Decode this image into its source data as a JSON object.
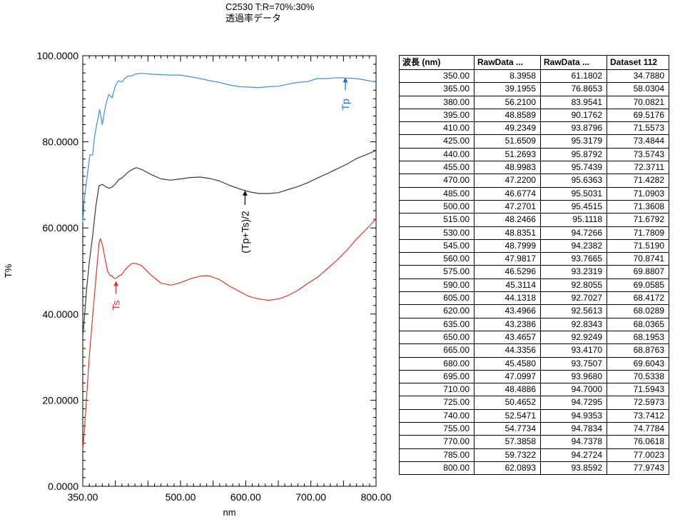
{
  "header": {
    "line1": "C2530 T:R=70%:30%",
    "line2": "透過率データ"
  },
  "chart_data": {
    "type": "line",
    "title": "C2530 T:R=70%:30%",
    "subtitle": "透過率データ",
    "xlabel": "nm",
    "ylabel": "T%",
    "xlim": [
      350,
      800
    ],
    "ylim": [
      0,
      100
    ],
    "xticks": [
      "350.00",
      "500.00",
      "600.00",
      "700.00",
      "800.00"
    ],
    "xtick_values": [
      350,
      500,
      600,
      700,
      800
    ],
    "yticks": [
      "0.0000",
      "20.0000",
      "40.0000",
      "60.0000",
      "80.0000",
      "100.0000"
    ],
    "ytick_values": [
      0,
      20,
      40,
      60,
      80,
      100
    ],
    "grid": false,
    "series": [
      {
        "name": "Tp",
        "color": "#3d8fe0",
        "points": [
          [
            350,
            61.2
          ],
          [
            352,
            66
          ],
          [
            355,
            70
          ],
          [
            358,
            73.5
          ],
          [
            361,
            77
          ],
          [
            365,
            76.9
          ],
          [
            368,
            81
          ],
          [
            372,
            84.5
          ],
          [
            376,
            87.5
          ],
          [
            380,
            84
          ],
          [
            383,
            86.8
          ],
          [
            386,
            89
          ],
          [
            390,
            91
          ],
          [
            395,
            90.2
          ],
          [
            400,
            93
          ],
          [
            405,
            94.2
          ],
          [
            410,
            93.9
          ],
          [
            415,
            94.8
          ],
          [
            420,
            95.3
          ],
          [
            425,
            95.3
          ],
          [
            430,
            95.7
          ],
          [
            440,
            95.9
          ],
          [
            455,
            95.7
          ],
          [
            470,
            95.6
          ],
          [
            485,
            95.5
          ],
          [
            500,
            95.5
          ],
          [
            515,
            95.1
          ],
          [
            530,
            94.7
          ],
          [
            545,
            94.2
          ],
          [
            560,
            93.8
          ],
          [
            575,
            93.2
          ],
          [
            590,
            92.8
          ],
          [
            605,
            92.7
          ],
          [
            620,
            92.6
          ],
          [
            635,
            92.8
          ],
          [
            650,
            92.9
          ],
          [
            665,
            93.4
          ],
          [
            680,
            93.8
          ],
          [
            695,
            94.0
          ],
          [
            710,
            94.7
          ],
          [
            725,
            94.7
          ],
          [
            740,
            94.9
          ],
          [
            755,
            94.8
          ],
          [
            770,
            94.7
          ],
          [
            785,
            94.3
          ],
          [
            800,
            93.9
          ]
        ]
      },
      {
        "name": "(Tp+Ts)/2",
        "color": "#3a3a3a",
        "points": [
          [
            350,
            34.8
          ],
          [
            353,
            40
          ],
          [
            356,
            46
          ],
          [
            360,
            52
          ],
          [
            365,
            58
          ],
          [
            370,
            65
          ],
          [
            375,
            69.8
          ],
          [
            380,
            70.1
          ],
          [
            385,
            69.6
          ],
          [
            390,
            69.2
          ],
          [
            395,
            69.5
          ],
          [
            400,
            70.2
          ],
          [
            405,
            71.2
          ],
          [
            410,
            71.6
          ],
          [
            420,
            73
          ],
          [
            425,
            73.5
          ],
          [
            432,
            74.0
          ],
          [
            440,
            73.6
          ],
          [
            455,
            72.4
          ],
          [
            470,
            71.4
          ],
          [
            485,
            71.1
          ],
          [
            500,
            71.4
          ],
          [
            515,
            71.7
          ],
          [
            530,
            71.8
          ],
          [
            545,
            71.5
          ],
          [
            560,
            70.9
          ],
          [
            575,
            69.9
          ],
          [
            590,
            69.1
          ],
          [
            605,
            68.4
          ],
          [
            620,
            68.0
          ],
          [
            635,
            68.0
          ],
          [
            650,
            68.2
          ],
          [
            665,
            68.9
          ],
          [
            680,
            69.6
          ],
          [
            695,
            70.5
          ],
          [
            710,
            71.6
          ],
          [
            725,
            72.6
          ],
          [
            740,
            73.7
          ],
          [
            755,
            74.8
          ],
          [
            770,
            76.1
          ],
          [
            785,
            77.0
          ],
          [
            800,
            78.0
          ]
        ]
      },
      {
        "name": "Ts",
        "color": "#e8312b",
        "points": [
          [
            350,
            8.4
          ],
          [
            353,
            14
          ],
          [
            356,
            21
          ],
          [
            360,
            30
          ],
          [
            365,
            39.2
          ],
          [
            370,
            48
          ],
          [
            375,
            56.5
          ],
          [
            377,
            57.5
          ],
          [
            380,
            56.2
          ],
          [
            384,
            53
          ],
          [
            388,
            50
          ],
          [
            392,
            48.9
          ],
          [
            395,
            48.9
          ],
          [
            398,
            48.3
          ],
          [
            401,
            48.3
          ],
          [
            405,
            48.8
          ],
          [
            410,
            49.2
          ],
          [
            415,
            50.3
          ],
          [
            418,
            50.8
          ],
          [
            425,
            51.7
          ],
          [
            430,
            51.8
          ],
          [
            440,
            51.3
          ],
          [
            455,
            49.0
          ],
          [
            470,
            47.2
          ],
          [
            485,
            46.7
          ],
          [
            500,
            47.3
          ],
          [
            515,
            48.2
          ],
          [
            530,
            48.8
          ],
          [
            540,
            48.9
          ],
          [
            545,
            48.8
          ],
          [
            560,
            48.0
          ],
          [
            575,
            46.5
          ],
          [
            590,
            45.3
          ],
          [
            605,
            44.1
          ],
          [
            620,
            43.5
          ],
          [
            635,
            43.2
          ],
          [
            650,
            43.5
          ],
          [
            665,
            44.3
          ],
          [
            680,
            45.5
          ],
          [
            695,
            47.1
          ],
          [
            710,
            48.5
          ],
          [
            725,
            50.5
          ],
          [
            740,
            52.5
          ],
          [
            755,
            54.8
          ],
          [
            770,
            57.4
          ],
          [
            785,
            59.7
          ],
          [
            800,
            62.1
          ]
        ]
      }
    ],
    "annotations": [
      {
        "text": "Tp",
        "color": "#1a6fd6",
        "x": 753,
        "y": 95.3
      },
      {
        "text": "(Tp+Ts)/2",
        "color": "#000000",
        "x": 599,
        "y": 69
      },
      {
        "text": "Ts",
        "color": "#e8312b",
        "x": 401,
        "y": 48
      }
    ]
  },
  "table": {
    "headers": [
      "波長 (nm)",
      "RawData ...",
      "RawData ...",
      "Dataset 112"
    ],
    "rows": [
      [
        "350.00",
        "8.3958",
        "61.1802",
        "34.7880"
      ],
      [
        "365.00",
        "39.1955",
        "76.8653",
        "58.0304"
      ],
      [
        "380.00",
        "56.2100",
        "83.9541",
        "70.0821"
      ],
      [
        "395.00",
        "48.8589",
        "90.1762",
        "69.5176"
      ],
      [
        "410.00",
        "49.2349",
        "93.8796",
        "71.5573"
      ],
      [
        "425.00",
        "51.6509",
        "95.3179",
        "73.4844"
      ],
      [
        "440.00",
        "51.2693",
        "95.8792",
        "73.5743"
      ],
      [
        "455.00",
        "48.9983",
        "95.7439",
        "72.3711"
      ],
      [
        "470.00",
        "47.2200",
        "95.6363",
        "71.4282"
      ],
      [
        "485.00",
        "46.6774",
        "95.5031",
        "71.0903"
      ],
      [
        "500.00",
        "47.2701",
        "95.4515",
        "71.3608"
      ],
      [
        "515.00",
        "48.2466",
        "95.1118",
        "71.6792"
      ],
      [
        "530.00",
        "48.8351",
        "94.7266",
        "71.7809"
      ],
      [
        "545.00",
        "48.7999",
        "94.2382",
        "71.5190"
      ],
      [
        "560.00",
        "47.9817",
        "93.7665",
        "70.8741"
      ],
      [
        "575.00",
        "46.5296",
        "93.2319",
        "69.8807"
      ],
      [
        "590.00",
        "45.3114",
        "92.8055",
        "69.0585"
      ],
      [
        "605.00",
        "44.1318",
        "92.7027",
        "68.4172"
      ],
      [
        "620.00",
        "43.4966",
        "92.5613",
        "68.0289"
      ],
      [
        "635.00",
        "43.2386",
        "92.8343",
        "68.0365"
      ],
      [
        "650.00",
        "43.4657",
        "92.9249",
        "68.1953"
      ],
      [
        "665.00",
        "44.3356",
        "93.4170",
        "68.8763"
      ],
      [
        "680.00",
        "45.4580",
        "93.7507",
        "69.6043"
      ],
      [
        "695.00",
        "47.0997",
        "93.9680",
        "70.5338"
      ],
      [
        "710.00",
        "48.4886",
        "94.7000",
        "71.5943"
      ],
      [
        "725.00",
        "50.4652",
        "94.7295",
        "72.5973"
      ],
      [
        "740.00",
        "52.5471",
        "94.9353",
        "73.7412"
      ],
      [
        "755.00",
        "54.7734",
        "94.7834",
        "74.7784"
      ],
      [
        "770.00",
        "57.3858",
        "94.7378",
        "76.0618"
      ],
      [
        "785.00",
        "59.7322",
        "94.2724",
        "77.0023"
      ],
      [
        "800.00",
        "62.0893",
        "93.8592",
        "77.9743"
      ]
    ]
  }
}
